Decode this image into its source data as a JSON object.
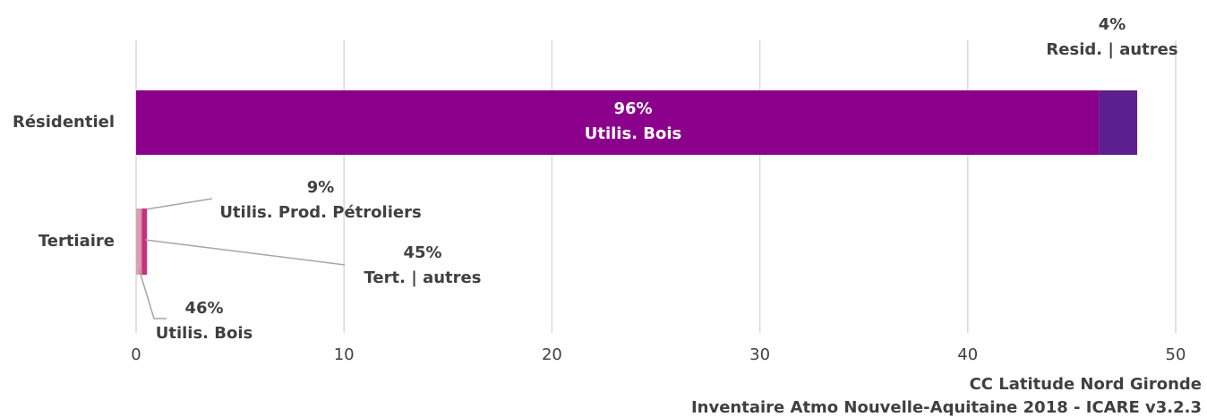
{
  "chart_data": {
    "type": "stacked_barh",
    "categories": [
      "Résidentiel",
      "Tertiaire"
    ],
    "series": [
      {
        "name": "Utilis. Bois",
        "color": "#8b008b",
        "values": [
          46.3,
          null
        ],
        "share_labels": [
          "96%",
          null
        ]
      },
      {
        "name": "Resid. | autres",
        "color": "#5c1f8e",
        "values": [
          1.85,
          null
        ],
        "share_labels": [
          "4%",
          null
        ]
      },
      {
        "name": "Utilis. Bois",
        "color": "#d4a3b4",
        "values": [
          null,
          0.24
        ],
        "share_labels": [
          null,
          "46%"
        ]
      },
      {
        "name": "Utilis. Prod. Pétroliers",
        "color": "#e0508c",
        "values": [
          null,
          0.05
        ],
        "share_labels": [
          null,
          "9%"
        ]
      },
      {
        "name": "Tert. | autres",
        "color": "#c8307a",
        "values": [
          null,
          0.23
        ],
        "share_labels": [
          null,
          "45%"
        ]
      }
    ],
    "xlim": [
      0,
      50
    ],
    "xticks": [
      0,
      10,
      20,
      30,
      40,
      50
    ],
    "grid": true,
    "footer": [
      "CC Latitude Nord Gironde",
      "Inventaire Atmo Nouvelle-Aquitaine 2018 - ICARE v3.2.3"
    ]
  }
}
